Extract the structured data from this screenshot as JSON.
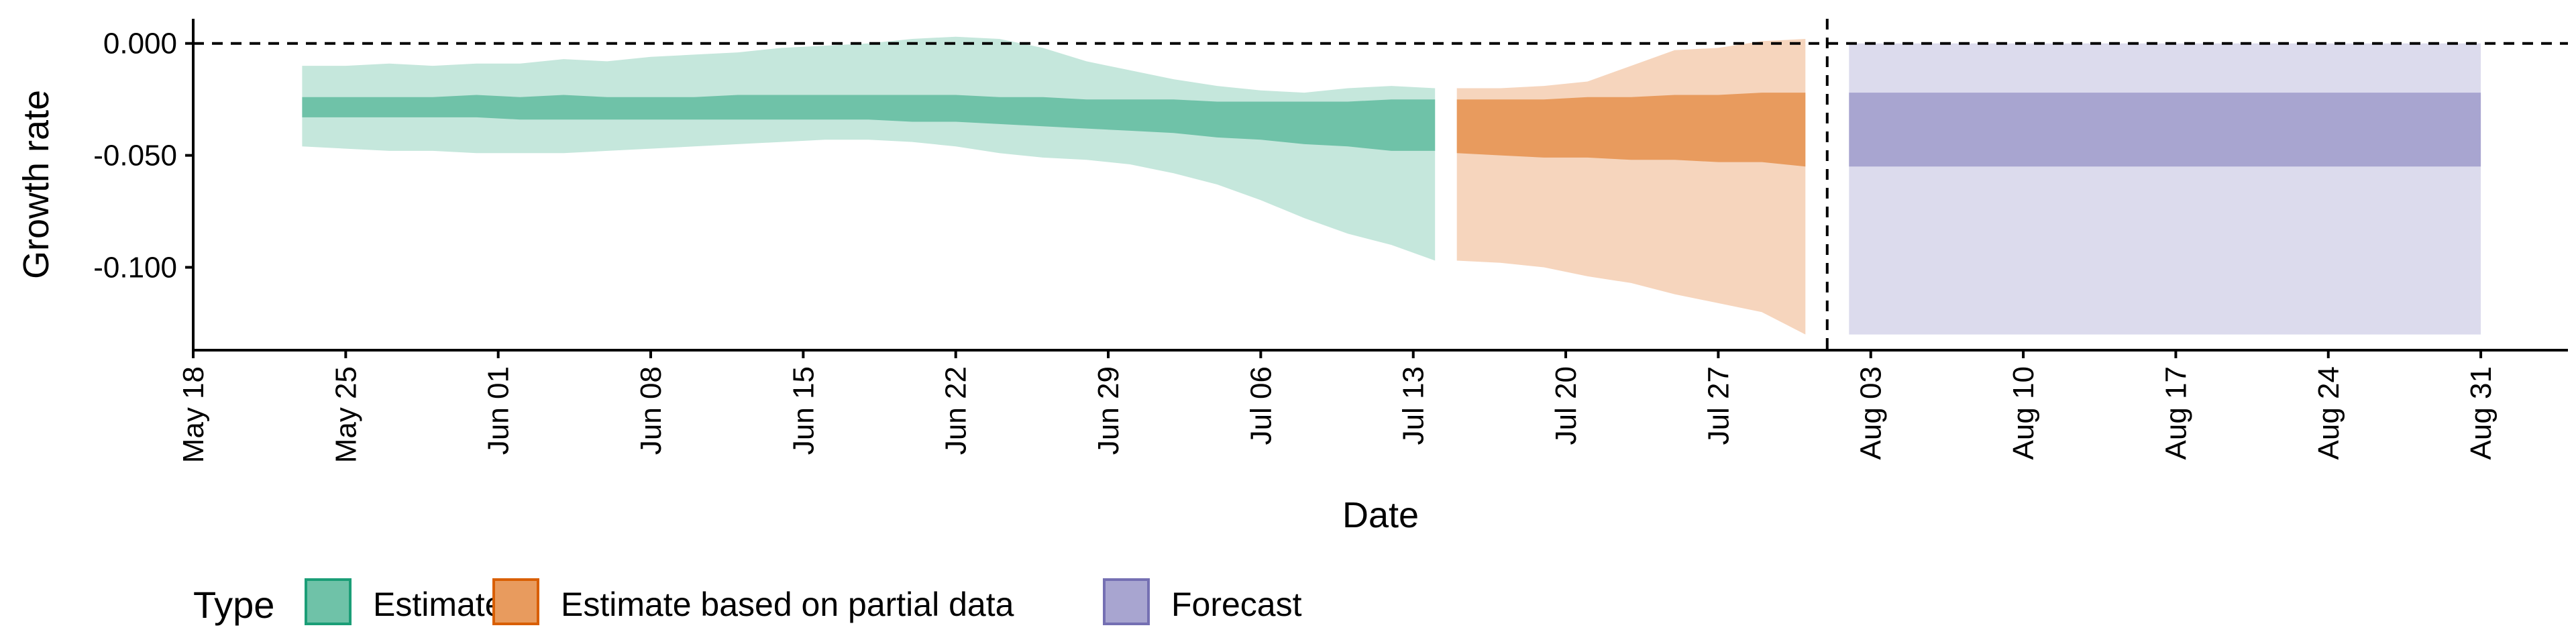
{
  "chart_data": {
    "type": "area",
    "xlabel": "Date",
    "ylabel": "Growth rate",
    "xlim": [
      "2020-05-18",
      "2020-09-04"
    ],
    "ylim": [
      -0.137,
      0.011
    ],
    "x_ticks": [
      "2020-05-18",
      "2020-05-25",
      "2020-06-01",
      "2020-06-08",
      "2020-06-15",
      "2020-06-22",
      "2020-06-29",
      "2020-07-06",
      "2020-07-13",
      "2020-07-20",
      "2020-07-27",
      "2020-08-03",
      "2020-08-10",
      "2020-08-17",
      "2020-08-24",
      "2020-08-31"
    ],
    "x_tick_labels": [
      "May 18",
      "May 25",
      "Jun 01",
      "Jun 08",
      "Jun 15",
      "Jun 22",
      "Jun 29",
      "Jul 06",
      "Jul 13",
      "Jul 20",
      "Jul 27",
      "Aug 03",
      "Aug 10",
      "Aug 17",
      "Aug 24",
      "Aug 31"
    ],
    "y_ticks": [
      0.0,
      -0.05,
      -0.1
    ],
    "y_tick_labels": [
      "0.000",
      "-0.050",
      "-0.100"
    ],
    "hline": 0.0,
    "vline": "2020-08-01",
    "grid": false,
    "legend": {
      "title": "Type",
      "position": "bottom-left",
      "entries": [
        {
          "label": "Estimate",
          "fill": "#6fc2a8",
          "stroke": "#1b9e77"
        },
        {
          "label": "Estimate based on partial data",
          "fill": "#e89b5e",
          "stroke": "#d95f02"
        },
        {
          "label": "Forecast",
          "fill": "#a8a5d0",
          "stroke": "#7570b3"
        }
      ]
    },
    "series": [
      {
        "name": "Estimate",
        "color_outer": "#c5e7dc",
        "color_inner": "#6fc2a8",
        "x": [
          "2020-05-23",
          "2020-05-25",
          "2020-05-27",
          "2020-05-29",
          "2020-05-31",
          "2020-06-02",
          "2020-06-04",
          "2020-06-06",
          "2020-06-08",
          "2020-06-10",
          "2020-06-12",
          "2020-06-14",
          "2020-06-16",
          "2020-06-18",
          "2020-06-20",
          "2020-06-22",
          "2020-06-24",
          "2020-06-26",
          "2020-06-28",
          "2020-06-30",
          "2020-07-02",
          "2020-07-04",
          "2020-07-06",
          "2020-07-08",
          "2020-07-10",
          "2020-07-12",
          "2020-07-14"
        ],
        "upper_outer": [
          -0.01,
          -0.01,
          -0.009,
          -0.01,
          -0.009,
          -0.009,
          -0.007,
          -0.008,
          -0.006,
          -0.005,
          -0.004,
          -0.002,
          -0.001,
          0.0,
          0.002,
          0.003,
          0.002,
          -0.002,
          -0.008,
          -0.012,
          -0.016,
          -0.019,
          -0.021,
          -0.022,
          -0.02,
          -0.019,
          -0.02
        ],
        "upper_inner": [
          -0.024,
          -0.024,
          -0.024,
          -0.024,
          -0.023,
          -0.024,
          -0.023,
          -0.024,
          -0.024,
          -0.024,
          -0.023,
          -0.023,
          -0.023,
          -0.023,
          -0.023,
          -0.023,
          -0.024,
          -0.024,
          -0.025,
          -0.025,
          -0.025,
          -0.026,
          -0.026,
          -0.026,
          -0.026,
          -0.025,
          -0.025
        ],
        "lower_inner": [
          -0.033,
          -0.033,
          -0.033,
          -0.033,
          -0.033,
          -0.034,
          -0.034,
          -0.034,
          -0.034,
          -0.034,
          -0.034,
          -0.034,
          -0.034,
          -0.034,
          -0.035,
          -0.035,
          -0.036,
          -0.037,
          -0.038,
          -0.039,
          -0.04,
          -0.042,
          -0.043,
          -0.045,
          -0.046,
          -0.048,
          -0.048
        ],
        "lower_outer": [
          -0.046,
          -0.047,
          -0.048,
          -0.048,
          -0.049,
          -0.049,
          -0.049,
          -0.048,
          -0.047,
          -0.046,
          -0.045,
          -0.044,
          -0.043,
          -0.043,
          -0.044,
          -0.046,
          -0.049,
          -0.051,
          -0.052,
          -0.054,
          -0.058,
          -0.063,
          -0.07,
          -0.078,
          -0.085,
          -0.09,
          -0.097
        ]
      },
      {
        "name": "Estimate based on partial data",
        "color_outer": "#f6d5bd",
        "color_inner": "#e89b5e",
        "x": [
          "2020-07-15",
          "2020-07-17",
          "2020-07-19",
          "2020-07-21",
          "2020-07-23",
          "2020-07-25",
          "2020-07-27",
          "2020-07-29",
          "2020-07-31"
        ],
        "upper_outer": [
          -0.02,
          -0.02,
          -0.019,
          -0.017,
          -0.01,
          -0.003,
          -0.002,
          0.001,
          0.002
        ],
        "upper_inner": [
          -0.025,
          -0.025,
          -0.025,
          -0.024,
          -0.024,
          -0.023,
          -0.023,
          -0.022,
          -0.022
        ],
        "lower_inner": [
          -0.049,
          -0.05,
          -0.051,
          -0.051,
          -0.052,
          -0.052,
          -0.053,
          -0.053,
          -0.055
        ],
        "lower_outer": [
          -0.097,
          -0.098,
          -0.1,
          -0.104,
          -0.107,
          -0.112,
          -0.116,
          -0.12,
          -0.13
        ]
      },
      {
        "name": "Forecast",
        "color_outer": "#dcdbed",
        "color_inner": "#a8a5d0",
        "x": [
          "2020-08-02",
          "2020-08-31"
        ],
        "upper_outer": [
          0.0,
          0.0
        ],
        "upper_inner": [
          -0.022,
          -0.022
        ],
        "lower_inner": [
          -0.055,
          -0.055
        ],
        "lower_outer": [
          -0.13,
          -0.13
        ]
      }
    ]
  }
}
